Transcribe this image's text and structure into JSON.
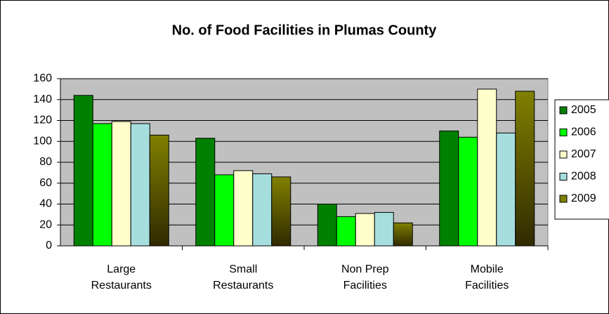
{
  "chart_data": {
    "type": "bar",
    "title": "No. of Food Facilities in Plumas County",
    "categories": [
      "Large Restaurants",
      "Small Restaurants",
      "Non Prep Facilities",
      "Mobile Facilities"
    ],
    "series": [
      {
        "name": "2005",
        "color": "#008000",
        "values": [
          144,
          103,
          40,
          110
        ]
      },
      {
        "name": "2006",
        "color": "#00ff00",
        "values": [
          117,
          68,
          28,
          104
        ]
      },
      {
        "name": "2007",
        "color": "#ffffcc",
        "values": [
          119,
          72,
          31,
          150
        ]
      },
      {
        "name": "2008",
        "color": "#a6dede",
        "values": [
          117,
          69,
          32,
          108
        ]
      },
      {
        "name": "2009",
        "color": "#808000",
        "values": [
          106,
          66,
          22,
          148
        ]
      }
    ],
    "ylim": [
      0,
      160
    ],
    "yticks": [
      0,
      20,
      40,
      60,
      80,
      100,
      120,
      140,
      160
    ],
    "grid": true,
    "legend": "right"
  }
}
